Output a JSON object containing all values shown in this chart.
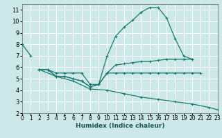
{
  "title": "",
  "xlabel": "Humidex (Indice chaleur)",
  "xlim": [
    0,
    23
  ],
  "ylim": [
    2,
    11.5
  ],
  "xticks": [
    0,
    1,
    2,
    3,
    4,
    5,
    6,
    7,
    8,
    9,
    10,
    11,
    12,
    13,
    14,
    15,
    16,
    17,
    18,
    19,
    20,
    21,
    22,
    23
  ],
  "yticks": [
    2,
    3,
    4,
    5,
    6,
    7,
    8,
    9,
    10,
    11
  ],
  "bg_color": "#cce8e8",
  "grid_color": "#ffffff",
  "line_color": "#1a7a6e",
  "series1_x": [
    0,
    1
  ],
  "series1_y": [
    8.0,
    7.0
  ],
  "series2_x": [
    2,
    3,
    4,
    5,
    6,
    7,
    8,
    9,
    10,
    11,
    12,
    13,
    14,
    15,
    16,
    17,
    18,
    19,
    20
  ],
  "series2_y": [
    5.8,
    5.8,
    5.5,
    5.5,
    5.5,
    5.5,
    4.5,
    4.5,
    7.0,
    8.7,
    9.5,
    10.1,
    10.8,
    11.2,
    11.2,
    10.3,
    8.5,
    7.0,
    6.7
  ],
  "series3_x": [
    2,
    3,
    4,
    5,
    6,
    7,
    8,
    9,
    10,
    11,
    12,
    13,
    14,
    15,
    16,
    17,
    18,
    19,
    20
  ],
  "series3_y": [
    5.8,
    5.8,
    5.2,
    5.2,
    5.0,
    4.8,
    4.3,
    4.5,
    5.5,
    6.2,
    6.3,
    6.4,
    6.5,
    6.5,
    6.6,
    6.7,
    6.7,
    6.7,
    6.7
  ],
  "series4_x": [
    2,
    3,
    4,
    5,
    6,
    7,
    8,
    9,
    10,
    11,
    12,
    13,
    14,
    15,
    16,
    17,
    18,
    19,
    20,
    21
  ],
  "series4_y": [
    5.8,
    5.8,
    5.2,
    5.2,
    5.0,
    4.8,
    4.3,
    4.5,
    5.5,
    5.5,
    5.5,
    5.5,
    5.5,
    5.5,
    5.5,
    5.5,
    5.5,
    5.5,
    5.5,
    5.5
  ],
  "series5_x": [
    2,
    4,
    6,
    8,
    10,
    12,
    14,
    16,
    18,
    20,
    22,
    23
  ],
  "series5_y": [
    5.8,
    5.2,
    4.8,
    4.1,
    4.0,
    3.7,
    3.4,
    3.2,
    3.0,
    2.8,
    2.5,
    2.3
  ],
  "xlabel_fontsize": 6.5,
  "xlabel_color": "#1a5555",
  "tick_fontsize": 5.5,
  "ytick_fontsize": 6.0,
  "line_width": 0.9,
  "marker_size": 3.0
}
